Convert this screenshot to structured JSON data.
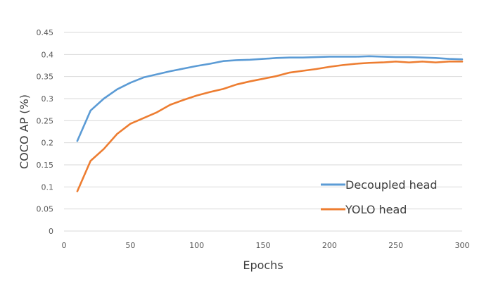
{
  "chart_data": {
    "type": "line",
    "title": "",
    "xlabel": "Epochs",
    "ylabel": "COCO AP (%)",
    "xlim": [
      0,
      300
    ],
    "ylim": [
      0,
      0.45
    ],
    "x_ticks": [
      0,
      50,
      100,
      150,
      200,
      250,
      300
    ],
    "y_ticks": [
      0,
      0.05,
      0.1,
      0.15,
      0.2,
      0.25,
      0.3,
      0.35,
      0.4,
      0.45
    ],
    "grid": "horizontal",
    "legend_position": "bottom-right",
    "series": [
      {
        "name": "Decoupled head",
        "color": "#5B9BD5",
        "x": [
          10,
          20,
          30,
          40,
          50,
          60,
          70,
          80,
          90,
          100,
          110,
          120,
          130,
          140,
          150,
          160,
          170,
          180,
          190,
          200,
          210,
          220,
          230,
          240,
          250,
          260,
          270,
          280,
          290,
          300
        ],
        "y": [
          0.204,
          0.273,
          0.3,
          0.321,
          0.336,
          0.348,
          0.355,
          0.362,
          0.368,
          0.374,
          0.379,
          0.385,
          0.387,
          0.388,
          0.39,
          0.392,
          0.393,
          0.393,
          0.394,
          0.395,
          0.395,
          0.395,
          0.396,
          0.395,
          0.394,
          0.394,
          0.393,
          0.392,
          0.39,
          0.389
        ]
      },
      {
        "name": "YOLO head",
        "color": "#ED7D31",
        "x": [
          10,
          20,
          30,
          40,
          50,
          60,
          70,
          80,
          90,
          100,
          110,
          120,
          130,
          140,
          150,
          160,
          170,
          180,
          190,
          200,
          210,
          220,
          230,
          240,
          250,
          260,
          270,
          280,
          290,
          300
        ],
        "y": [
          0.09,
          0.159,
          0.186,
          0.22,
          0.243,
          0.256,
          0.269,
          0.286,
          0.297,
          0.307,
          0.315,
          0.322,
          0.332,
          0.339,
          0.345,
          0.351,
          0.359,
          0.363,
          0.367,
          0.372,
          0.376,
          0.379,
          0.381,
          0.382,
          0.384,
          0.382,
          0.384,
          0.382,
          0.384,
          0.384
        ]
      }
    ]
  }
}
